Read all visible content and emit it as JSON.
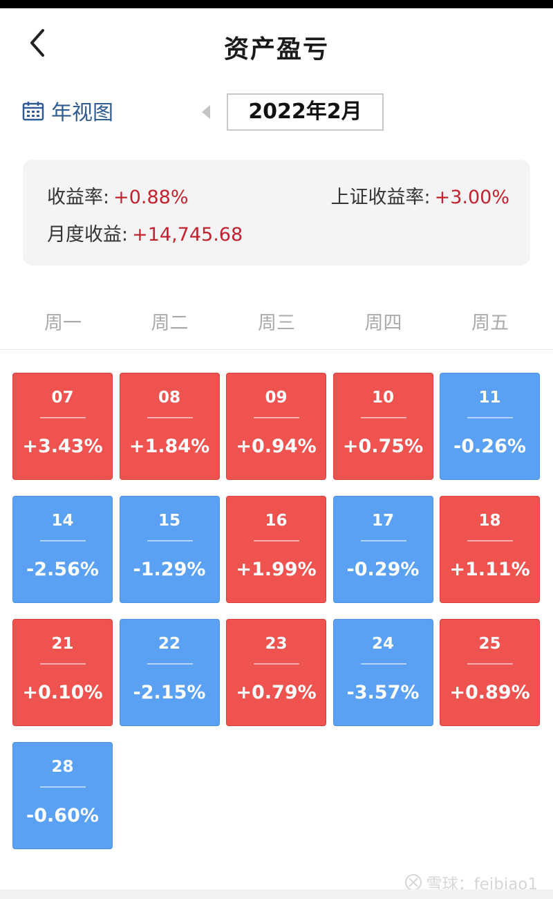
{
  "header": {
    "title": "资产盈亏"
  },
  "toolbar": {
    "year_view_label": "年视图",
    "month": "2022年2月"
  },
  "summary": {
    "return_label": "收益率:",
    "return_value": "+0.88%",
    "sse_label": "上证收益率:",
    "sse_value": "+3.00%",
    "monthly_label": "月度收益:",
    "monthly_value": "+14,745.68"
  },
  "weekdays": [
    "周一",
    "周二",
    "周三",
    "周四",
    "周五"
  ],
  "days": [
    {
      "day": "07",
      "pct": "+3.43%",
      "trend": "pos"
    },
    {
      "day": "08",
      "pct": "+1.84%",
      "trend": "pos"
    },
    {
      "day": "09",
      "pct": "+0.94%",
      "trend": "pos"
    },
    {
      "day": "10",
      "pct": "+0.75%",
      "trend": "pos"
    },
    {
      "day": "11",
      "pct": "-0.26%",
      "trend": "neg"
    },
    {
      "day": "14",
      "pct": "-2.56%",
      "trend": "neg"
    },
    {
      "day": "15",
      "pct": "-1.29%",
      "trend": "neg"
    },
    {
      "day": "16",
      "pct": "+1.99%",
      "trend": "pos"
    },
    {
      "day": "17",
      "pct": "-0.29%",
      "trend": "neg"
    },
    {
      "day": "18",
      "pct": "+1.11%",
      "trend": "pos"
    },
    {
      "day": "21",
      "pct": "+0.10%",
      "trend": "pos"
    },
    {
      "day": "22",
      "pct": "-2.15%",
      "trend": "neg"
    },
    {
      "day": "23",
      "pct": "+0.79%",
      "trend": "pos"
    },
    {
      "day": "24",
      "pct": "-3.57%",
      "trend": "neg"
    },
    {
      "day": "25",
      "pct": "+0.89%",
      "trend": "pos"
    },
    {
      "day": "28",
      "pct": "-0.60%",
      "trend": "neg"
    }
  ],
  "watermark": "雪球：feibiao1",
  "colors": {
    "gain": "#ef5350",
    "loss": "#5aa0f3",
    "link": "#2f5b94",
    "value_red": "#c2212f"
  },
  "icons": {
    "back": "chevron-left-icon",
    "calendar": "calendar-icon",
    "prev": "triangle-left-icon"
  }
}
